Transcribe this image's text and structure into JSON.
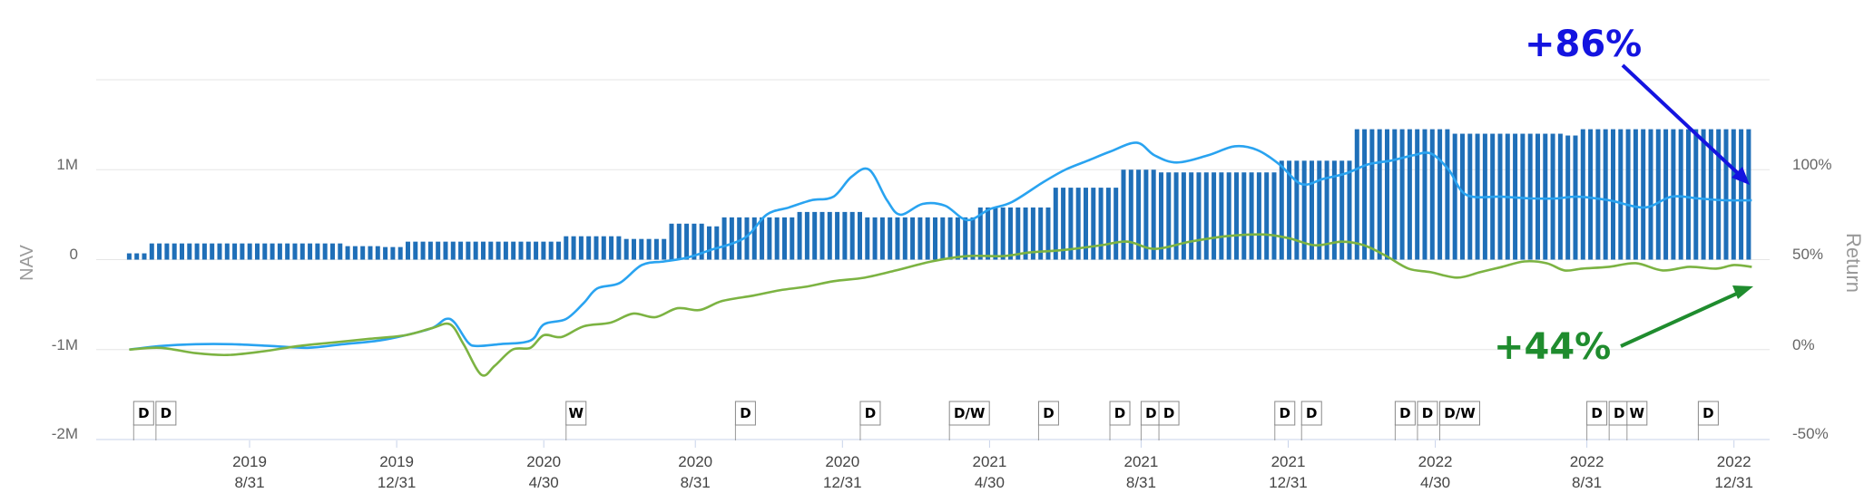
{
  "chart_data": {
    "type": "bar+line",
    "left_axis": {
      "label": "NAV",
      "ticks": [
        "1M",
        "0",
        "-1M",
        "-2M"
      ],
      "ylim": [
        -2000000,
        2000000
      ]
    },
    "right_axis": {
      "label": "Return",
      "ticks": [
        "100%",
        "50%",
        "0%",
        "-50%"
      ],
      "ylim": [
        -50,
        150
      ]
    },
    "x_axis": {
      "ticks": [
        {
          "year": "2019",
          "date": "8/31"
        },
        {
          "year": "2019",
          "date": "12/31"
        },
        {
          "year": "2020",
          "date": "4/30"
        },
        {
          "year": "2020",
          "date": "8/31"
        },
        {
          "year": "2020",
          "date": "12/31"
        },
        {
          "year": "2021",
          "date": "4/30"
        },
        {
          "year": "2021",
          "date": "8/31"
        },
        {
          "year": "2021",
          "date": "12/31"
        },
        {
          "year": "2022",
          "date": "4/30"
        },
        {
          "year": "2022",
          "date": "8/31"
        },
        {
          "year": "2022",
          "date": "12/31"
        }
      ],
      "range_months": [
        2019.33,
        2023.08
      ]
    },
    "nav_bars": {
      "color": "#1f6fb8",
      "steps": [
        {
          "from": 2019.4,
          "to": 2019.45,
          "value": 70000
        },
        {
          "from": 2019.45,
          "to": 2019.89,
          "value": 180000
        },
        {
          "from": 2019.89,
          "to": 2019.96,
          "value": 150000
        },
        {
          "from": 2019.96,
          "to": 2020.02,
          "value": 140000
        },
        {
          "from": 2020.02,
          "to": 2020.38,
          "value": 200000
        },
        {
          "from": 2020.38,
          "to": 2020.5,
          "value": 260000
        },
        {
          "from": 2020.5,
          "to": 2020.6,
          "value": 230000
        },
        {
          "from": 2020.6,
          "to": 2020.7,
          "value": 400000
        },
        {
          "from": 2020.7,
          "to": 2020.73,
          "value": 370000
        },
        {
          "from": 2020.73,
          "to": 2020.9,
          "value": 470000
        },
        {
          "from": 2020.9,
          "to": 2021.05,
          "value": 530000
        },
        {
          "from": 2021.05,
          "to": 2021.3,
          "value": 470000
        },
        {
          "from": 2021.3,
          "to": 2021.47,
          "value": 580000
        },
        {
          "from": 2021.47,
          "to": 2021.62,
          "value": 800000
        },
        {
          "from": 2021.62,
          "to": 2021.7,
          "value": 1000000
        },
        {
          "from": 2021.7,
          "to": 2021.97,
          "value": 970000
        },
        {
          "from": 2021.97,
          "to": 2022.15,
          "value": 1100000
        },
        {
          "from": 2022.15,
          "to": 2022.36,
          "value": 1450000
        },
        {
          "from": 2022.36,
          "to": 2022.62,
          "value": 1400000
        },
        {
          "from": 2022.62,
          "to": 2022.66,
          "value": 1380000
        },
        {
          "from": 2022.66,
          "to": 2023.04,
          "value": 1450000
        }
      ]
    },
    "series": [
      {
        "color": "#29a3f0",
        "points": [
          [
            2019.4,
            0
          ],
          [
            2019.47,
            2
          ],
          [
            2019.55,
            3
          ],
          [
            2019.63,
            3
          ],
          [
            2019.72,
            2
          ],
          [
            2019.8,
            1
          ],
          [
            2019.88,
            3
          ],
          [
            2019.96,
            5
          ],
          [
            2020.02,
            8
          ],
          [
            2020.08,
            12
          ],
          [
            2020.11,
            17
          ],
          [
            2020.13,
            15
          ],
          [
            2020.16,
            4
          ],
          [
            2020.18,
            2
          ],
          [
            2020.23,
            3
          ],
          [
            2020.3,
            5
          ],
          [
            2020.33,
            14
          ],
          [
            2020.38,
            17
          ],
          [
            2020.42,
            26
          ],
          [
            2020.45,
            34
          ],
          [
            2020.5,
            37
          ],
          [
            2020.55,
            47
          ],
          [
            2020.6,
            49
          ],
          [
            2020.65,
            51
          ],
          [
            2020.7,
            55
          ],
          [
            2020.78,
            62
          ],
          [
            2020.83,
            75
          ],
          [
            2020.88,
            79
          ],
          [
            2020.93,
            83
          ],
          [
            2020.98,
            85
          ],
          [
            2021.02,
            96
          ],
          [
            2021.06,
            100
          ],
          [
            2021.1,
            83
          ],
          [
            2021.13,
            75
          ],
          [
            2021.18,
            81
          ],
          [
            2021.23,
            80
          ],
          [
            2021.28,
            72
          ],
          [
            2021.33,
            78
          ],
          [
            2021.38,
            82
          ],
          [
            2021.45,
            93
          ],
          [
            2021.5,
            100
          ],
          [
            2021.55,
            105
          ],
          [
            2021.6,
            110
          ],
          [
            2021.66,
            115
          ],
          [
            2021.7,
            108
          ],
          [
            2021.75,
            104
          ],
          [
            2021.82,
            108
          ],
          [
            2021.88,
            113
          ],
          [
            2021.93,
            111
          ],
          [
            2021.98,
            103
          ],
          [
            2022.03,
            92
          ],
          [
            2022.08,
            95
          ],
          [
            2022.13,
            98
          ],
          [
            2022.18,
            103
          ],
          [
            2022.23,
            105
          ],
          [
            2022.28,
            108
          ],
          [
            2022.32,
            109
          ],
          [
            2022.36,
            100
          ],
          [
            2022.4,
            86
          ],
          [
            2022.48,
            85
          ],
          [
            2022.55,
            84
          ],
          [
            2022.6,
            84
          ],
          [
            2022.65,
            85
          ],
          [
            2022.72,
            83
          ],
          [
            2022.8,
            79
          ],
          [
            2022.86,
            85
          ],
          [
            2022.92,
            84
          ],
          [
            2022.98,
            83
          ],
          [
            2023.04,
            83
          ]
        ]
      },
      {
        "color": "#7cb342",
        "points": [
          [
            2019.4,
            0
          ],
          [
            2019.47,
            1
          ],
          [
            2019.55,
            -2
          ],
          [
            2019.62,
            -3
          ],
          [
            2019.7,
            -1
          ],
          [
            2019.78,
            2
          ],
          [
            2019.86,
            4
          ],
          [
            2019.94,
            6
          ],
          [
            2020.02,
            8
          ],
          [
            2020.08,
            12
          ],
          [
            2020.12,
            14
          ],
          [
            2020.15,
            3
          ],
          [
            2020.19,
            -14
          ],
          [
            2020.22,
            -9
          ],
          [
            2020.26,
            0
          ],
          [
            2020.3,
            1
          ],
          [
            2020.33,
            8
          ],
          [
            2020.37,
            7
          ],
          [
            2020.42,
            13
          ],
          [
            2020.48,
            15
          ],
          [
            2020.53,
            20
          ],
          [
            2020.58,
            18
          ],
          [
            2020.63,
            23
          ],
          [
            2020.68,
            22
          ],
          [
            2020.73,
            27
          ],
          [
            2020.8,
            30
          ],
          [
            2020.86,
            33
          ],
          [
            2020.92,
            35
          ],
          [
            2020.98,
            38
          ],
          [
            2021.05,
            40
          ],
          [
            2021.12,
            44
          ],
          [
            2021.2,
            49
          ],
          [
            2021.28,
            52
          ],
          [
            2021.36,
            52
          ],
          [
            2021.42,
            54
          ],
          [
            2021.48,
            55
          ],
          [
            2021.52,
            56
          ],
          [
            2021.58,
            58
          ],
          [
            2021.64,
            60
          ],
          [
            2021.7,
            56
          ],
          [
            2021.78,
            60
          ],
          [
            2021.86,
            63
          ],
          [
            2021.94,
            64
          ],
          [
            2022.0,
            62
          ],
          [
            2022.06,
            58
          ],
          [
            2022.12,
            60
          ],
          [
            2022.17,
            58
          ],
          [
            2022.22,
            52
          ],
          [
            2022.27,
            45
          ],
          [
            2022.32,
            43
          ],
          [
            2022.38,
            40
          ],
          [
            2022.43,
            43
          ],
          [
            2022.48,
            46
          ],
          [
            2022.53,
            49
          ],
          [
            2022.58,
            48
          ],
          [
            2022.62,
            44
          ],
          [
            2022.66,
            45
          ],
          [
            2022.72,
            46
          ],
          [
            2022.78,
            48
          ],
          [
            2022.84,
            44
          ],
          [
            2022.9,
            46
          ],
          [
            2022.96,
            45
          ],
          [
            2023.0,
            47
          ],
          [
            2023.04,
            46
          ]
        ]
      }
    ],
    "flags": [
      {
        "label": "D",
        "x": 2019.41
      },
      {
        "label": "D",
        "x": 2019.46
      },
      {
        "label": "W",
        "x": 2020.38
      },
      {
        "label": "D",
        "x": 2020.76
      },
      {
        "label": "D",
        "x": 2021.04
      },
      {
        "label": "D/W",
        "x": 2021.24
      },
      {
        "label": "D",
        "x": 2021.44
      },
      {
        "label": "D",
        "x": 2021.6
      },
      {
        "label": "D",
        "x": 2021.67
      },
      {
        "label": "D",
        "x": 2021.71
      },
      {
        "label": "D",
        "x": 2021.97
      },
      {
        "label": "D",
        "x": 2022.03
      },
      {
        "label": "D",
        "x": 2022.24
      },
      {
        "label": "D",
        "x": 2022.29
      },
      {
        "label": "D/W",
        "x": 2022.34
      },
      {
        "label": "D",
        "x": 2022.67
      },
      {
        "label": "D",
        "x": 2022.72
      },
      {
        "label": "W",
        "x": 2022.76
      },
      {
        "label": "D",
        "x": 2022.92
      }
    ],
    "annotations": [
      {
        "text": "+86%",
        "color": "#1414e0"
      },
      {
        "text": "+44%",
        "color": "#1f8c2e"
      }
    ],
    "grid": true
  }
}
